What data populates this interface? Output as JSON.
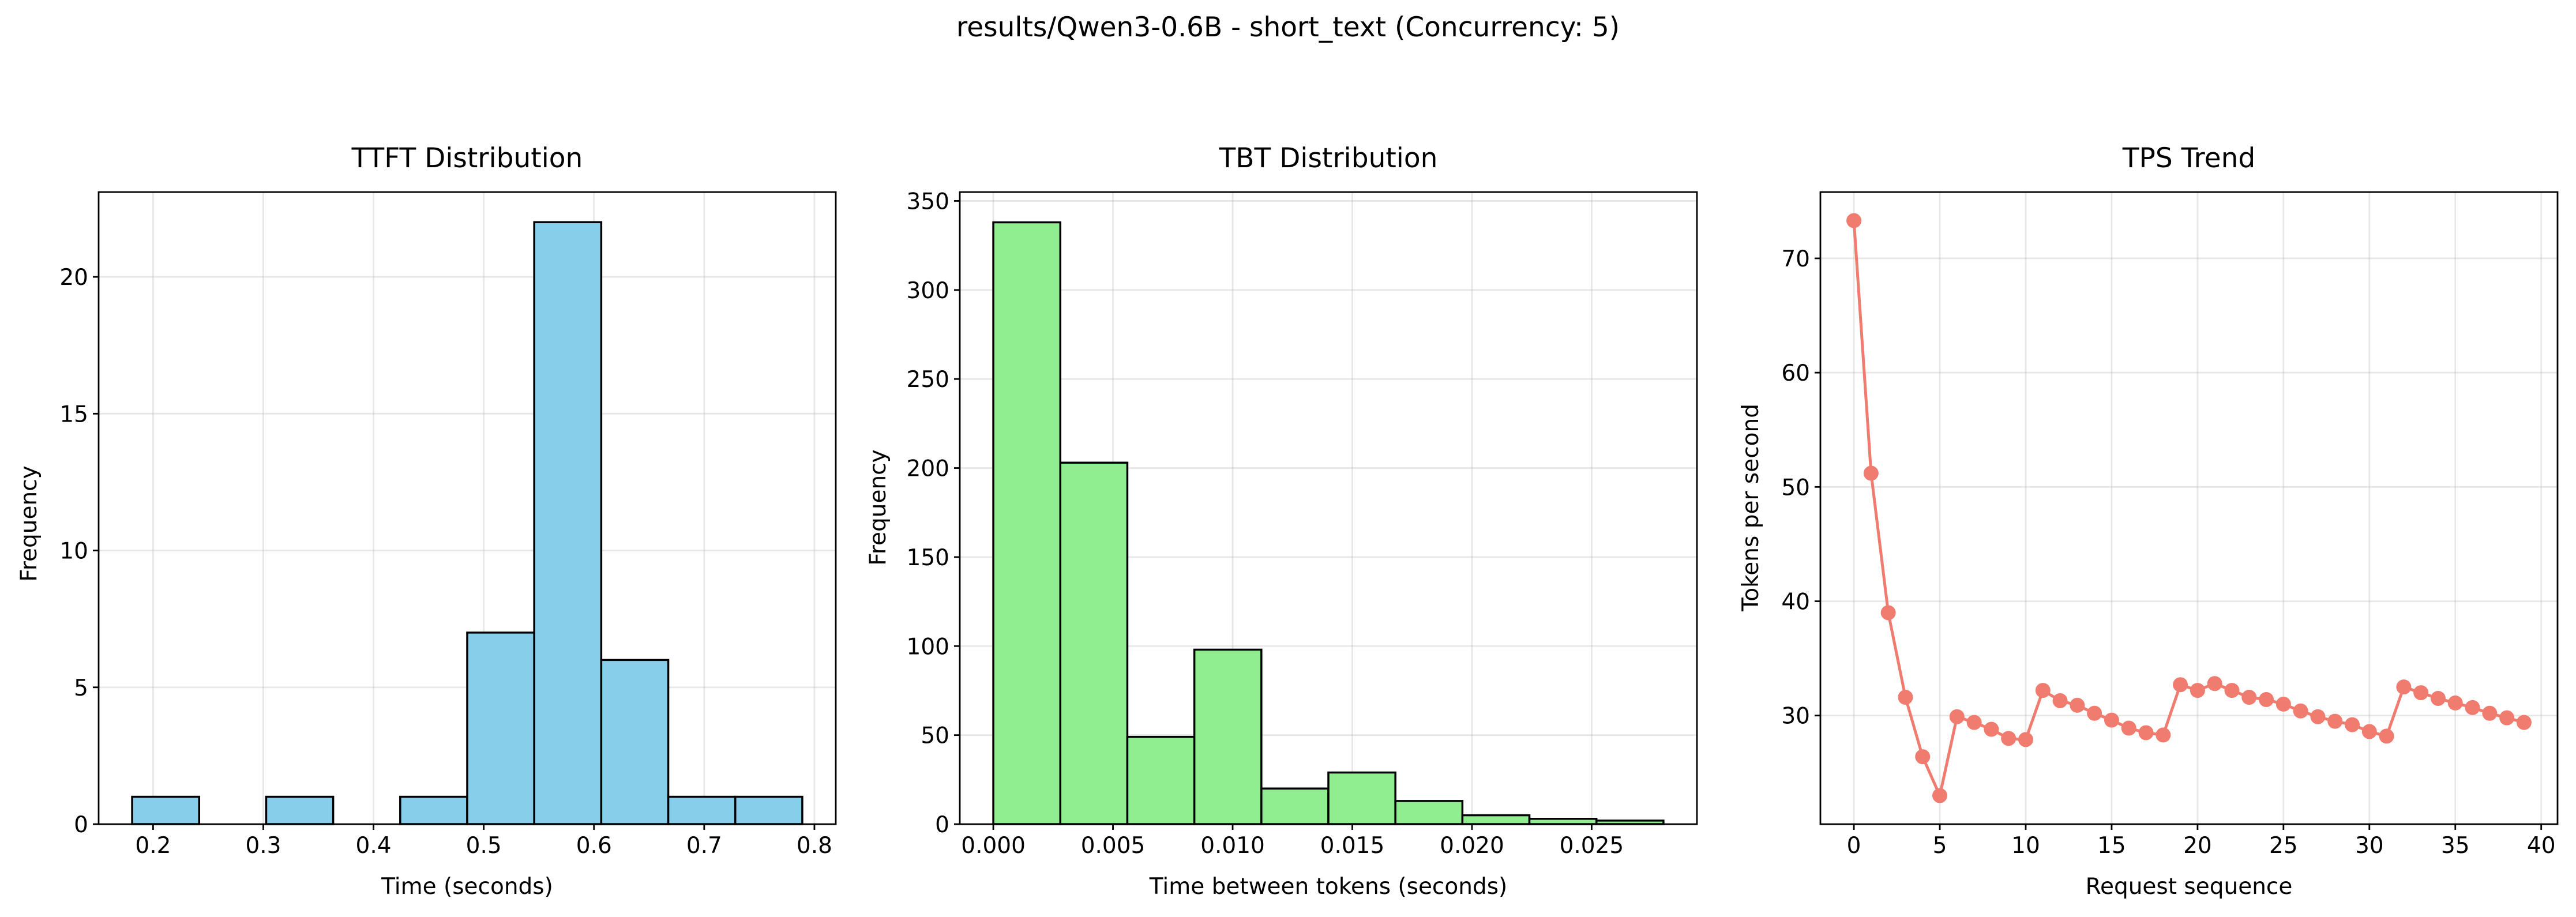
{
  "suptitle": "results/Qwen3-0.6B - short_text (Concurrency: 5)",
  "chart_data": [
    {
      "type": "bar",
      "subtype": "histogram",
      "title": "TTFT Distribution",
      "xlabel": "Time (seconds)",
      "ylabel": "Frequency",
      "bin_edges": [
        0.181,
        0.2418,
        0.3026,
        0.3634,
        0.4242,
        0.485,
        0.5458,
        0.6066,
        0.6674,
        0.7282,
        0.789
      ],
      "values": [
        1,
        0,
        1,
        0,
        1,
        7,
        22,
        6,
        1,
        1
      ],
      "xlim": [
        0.1506,
        0.8194
      ],
      "ylim": [
        0,
        23.1
      ],
      "xticks": [
        0.2,
        0.3,
        0.4,
        0.5,
        0.6,
        0.7,
        0.8
      ],
      "xtick_labels": [
        "0.2",
        "0.3",
        "0.4",
        "0.5",
        "0.6",
        "0.7",
        "0.8"
      ],
      "yticks": [
        0,
        5,
        10,
        15,
        20
      ],
      "ytick_labels": [
        "0",
        "5",
        "10",
        "15",
        "20"
      ],
      "color": "#87CEEB",
      "edgecolor": "#000000",
      "grid": true
    },
    {
      "type": "bar",
      "subtype": "histogram",
      "title": "TBT Distribution",
      "xlabel": "Time between tokens (seconds)",
      "ylabel": "Frequency",
      "bin_edges": [
        0.0,
        0.0028,
        0.0056,
        0.0084,
        0.0112,
        0.014,
        0.0168,
        0.0196,
        0.0224,
        0.0252,
        0.028
      ],
      "values": [
        338,
        203,
        49,
        98,
        20,
        29,
        13,
        5,
        3,
        2
      ],
      "xlim": [
        -0.0014,
        0.0294
      ],
      "ylim": [
        0,
        355
      ],
      "xticks": [
        0.0,
        0.005,
        0.01,
        0.015,
        0.02,
        0.025
      ],
      "xtick_labels": [
        "0.000",
        "0.005",
        "0.010",
        "0.015",
        "0.020",
        "0.025"
      ],
      "yticks": [
        0,
        50,
        100,
        150,
        200,
        250,
        300,
        350
      ],
      "ytick_labels": [
        "0",
        "50",
        "100",
        "150",
        "200",
        "250",
        "300",
        "350"
      ],
      "color": "#90EE90",
      "edgecolor": "#000000",
      "grid": true
    },
    {
      "type": "line",
      "title": "TPS Trend",
      "xlabel": "Request sequence",
      "ylabel": "Tokens per second",
      "x": [
        0,
        1,
        2,
        3,
        4,
        5,
        6,
        7,
        8,
        9,
        10,
        11,
        12,
        13,
        14,
        15,
        16,
        17,
        18,
        19,
        20,
        21,
        22,
        23,
        24,
        25,
        26,
        27,
        28,
        29,
        30,
        31,
        32,
        33,
        34,
        35,
        36,
        37,
        38,
        39
      ],
      "y": [
        73.3,
        51.2,
        39.0,
        31.6,
        26.4,
        23.0,
        29.9,
        29.4,
        28.8,
        28.0,
        27.9,
        32.2,
        31.3,
        30.9,
        30.2,
        29.6,
        28.9,
        28.5,
        28.3,
        32.7,
        32.2,
        32.8,
        32.2,
        31.6,
        31.4,
        31.0,
        30.4,
        29.9,
        29.5,
        29.2,
        28.6,
        28.2,
        32.5,
        32.0,
        31.5,
        31.1,
        30.7,
        30.2,
        29.8,
        29.4
      ],
      "xlim": [
        -1.95,
        40.95
      ],
      "ylim": [
        20.5,
        75.8
      ],
      "xticks": [
        0,
        5,
        10,
        15,
        20,
        25,
        30,
        35,
        40
      ],
      "xtick_labels": [
        "0",
        "5",
        "10",
        "15",
        "20",
        "25",
        "30",
        "35",
        "40"
      ],
      "yticks": [
        30,
        40,
        50,
        60,
        70
      ],
      "ytick_labels": [
        "30",
        "40",
        "50",
        "60",
        "70"
      ],
      "color": "#F07B6F",
      "marker": "circle",
      "grid": true
    }
  ]
}
